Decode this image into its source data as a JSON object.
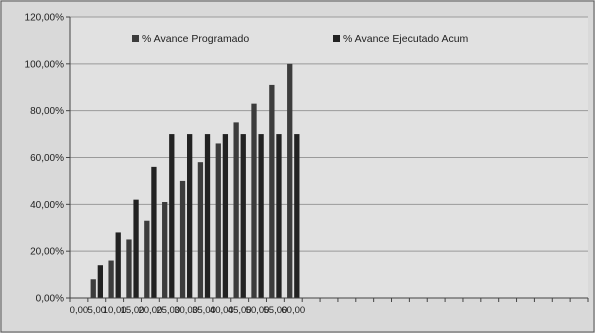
{
  "chart_data": {
    "type": "bar",
    "title": "",
    "xlabel": "",
    "ylabel": "",
    "ylim": [
      0,
      120
    ],
    "y_ticks": [
      "0,00%",
      "20,00%",
      "40,00%",
      "60,00%",
      "80,00%",
      "100,00%",
      "120,00%"
    ],
    "y_tick_values": [
      0,
      20,
      40,
      60,
      80,
      100,
      120
    ],
    "categories": [
      "0,00",
      "5,00",
      "10,00",
      "15,00",
      "20,00",
      "25,00",
      "30,00",
      "35,00",
      "40,00",
      "45,00",
      "50,00",
      "55,00",
      "60,00"
    ],
    "series": [
      {
        "name": "% Avance Programado",
        "color": "#3c3c3c",
        "values": [
          null,
          8,
          16,
          25,
          33,
          41,
          50,
          58,
          66,
          75,
          83,
          91,
          100
        ]
      },
      {
        "name": "% Avance Ejecutado Acum",
        "color": "#222222",
        "values": [
          null,
          14,
          28,
          42,
          56,
          70,
          70,
          70,
          70,
          70,
          70,
          70,
          70
        ]
      }
    ],
    "grid": true,
    "legend_position": "top"
  },
  "colors": {
    "background": "#d9d9d9",
    "plot_background": "#e1e1e1",
    "gridline": "#9a9a9a",
    "axis": "#444444"
  }
}
